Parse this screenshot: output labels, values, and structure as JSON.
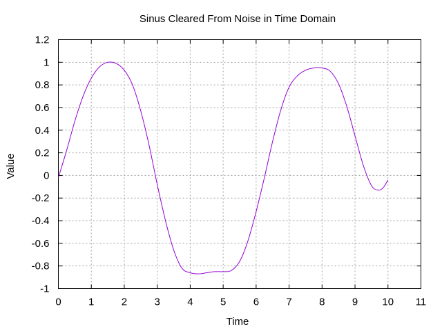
{
  "chart_data": {
    "type": "line",
    "title": "Sinus Cleared From Noise in Time Domain",
    "xlabel": "Time",
    "ylabel": "Value",
    "xlim": [
      0,
      11
    ],
    "ylim": [
      -1,
      1.2
    ],
    "x_ticks": [
      0,
      1,
      2,
      3,
      4,
      5,
      6,
      7,
      8,
      9,
      10,
      11
    ],
    "y_ticks": [
      -1,
      -0.8,
      -0.6,
      -0.4,
      -0.2,
      0,
      0.2,
      0.4,
      0.6,
      0.8,
      1,
      1.2
    ],
    "x_tick_labels": [
      "0",
      "1",
      "2",
      "3",
      "4",
      "5",
      "6",
      "7",
      "8",
      "9",
      "10",
      "11"
    ],
    "y_tick_labels": [
      "-1",
      "-0.8",
      "-0.6",
      "-0.4",
      "-0.2",
      "0",
      "0.2",
      "0.4",
      "0.6",
      "0.8",
      "1",
      "1.2"
    ],
    "grid": true,
    "legend": "none",
    "series": [
      {
        "color": "#9400d3",
        "x": [
          0,
          0.25,
          0.5,
          0.75,
          1.0,
          1.25,
          1.5,
          1.75,
          2.0,
          2.25,
          2.5,
          2.75,
          3.0,
          3.25,
          3.5,
          3.75,
          4.0,
          4.25,
          4.5,
          4.75,
          5.0,
          5.25,
          5.5,
          5.75,
          6.0,
          6.25,
          6.5,
          6.75,
          7.0,
          7.25,
          7.5,
          7.75,
          8.0,
          8.25,
          8.5,
          8.75,
          9.0,
          9.25,
          9.5,
          9.7,
          9.85,
          10.0
        ],
        "y": [
          -0.02,
          0.22,
          0.48,
          0.7,
          0.86,
          0.96,
          1.0,
          0.99,
          0.93,
          0.8,
          0.57,
          0.27,
          -0.08,
          -0.4,
          -0.66,
          -0.82,
          -0.86,
          -0.87,
          -0.86,
          -0.85,
          -0.85,
          -0.84,
          -0.76,
          -0.58,
          -0.32,
          -0.02,
          0.3,
          0.58,
          0.78,
          0.88,
          0.93,
          0.95,
          0.95,
          0.92,
          0.81,
          0.61,
          0.35,
          0.09,
          -0.09,
          -0.13,
          -0.11,
          -0.04
        ]
      }
    ]
  }
}
